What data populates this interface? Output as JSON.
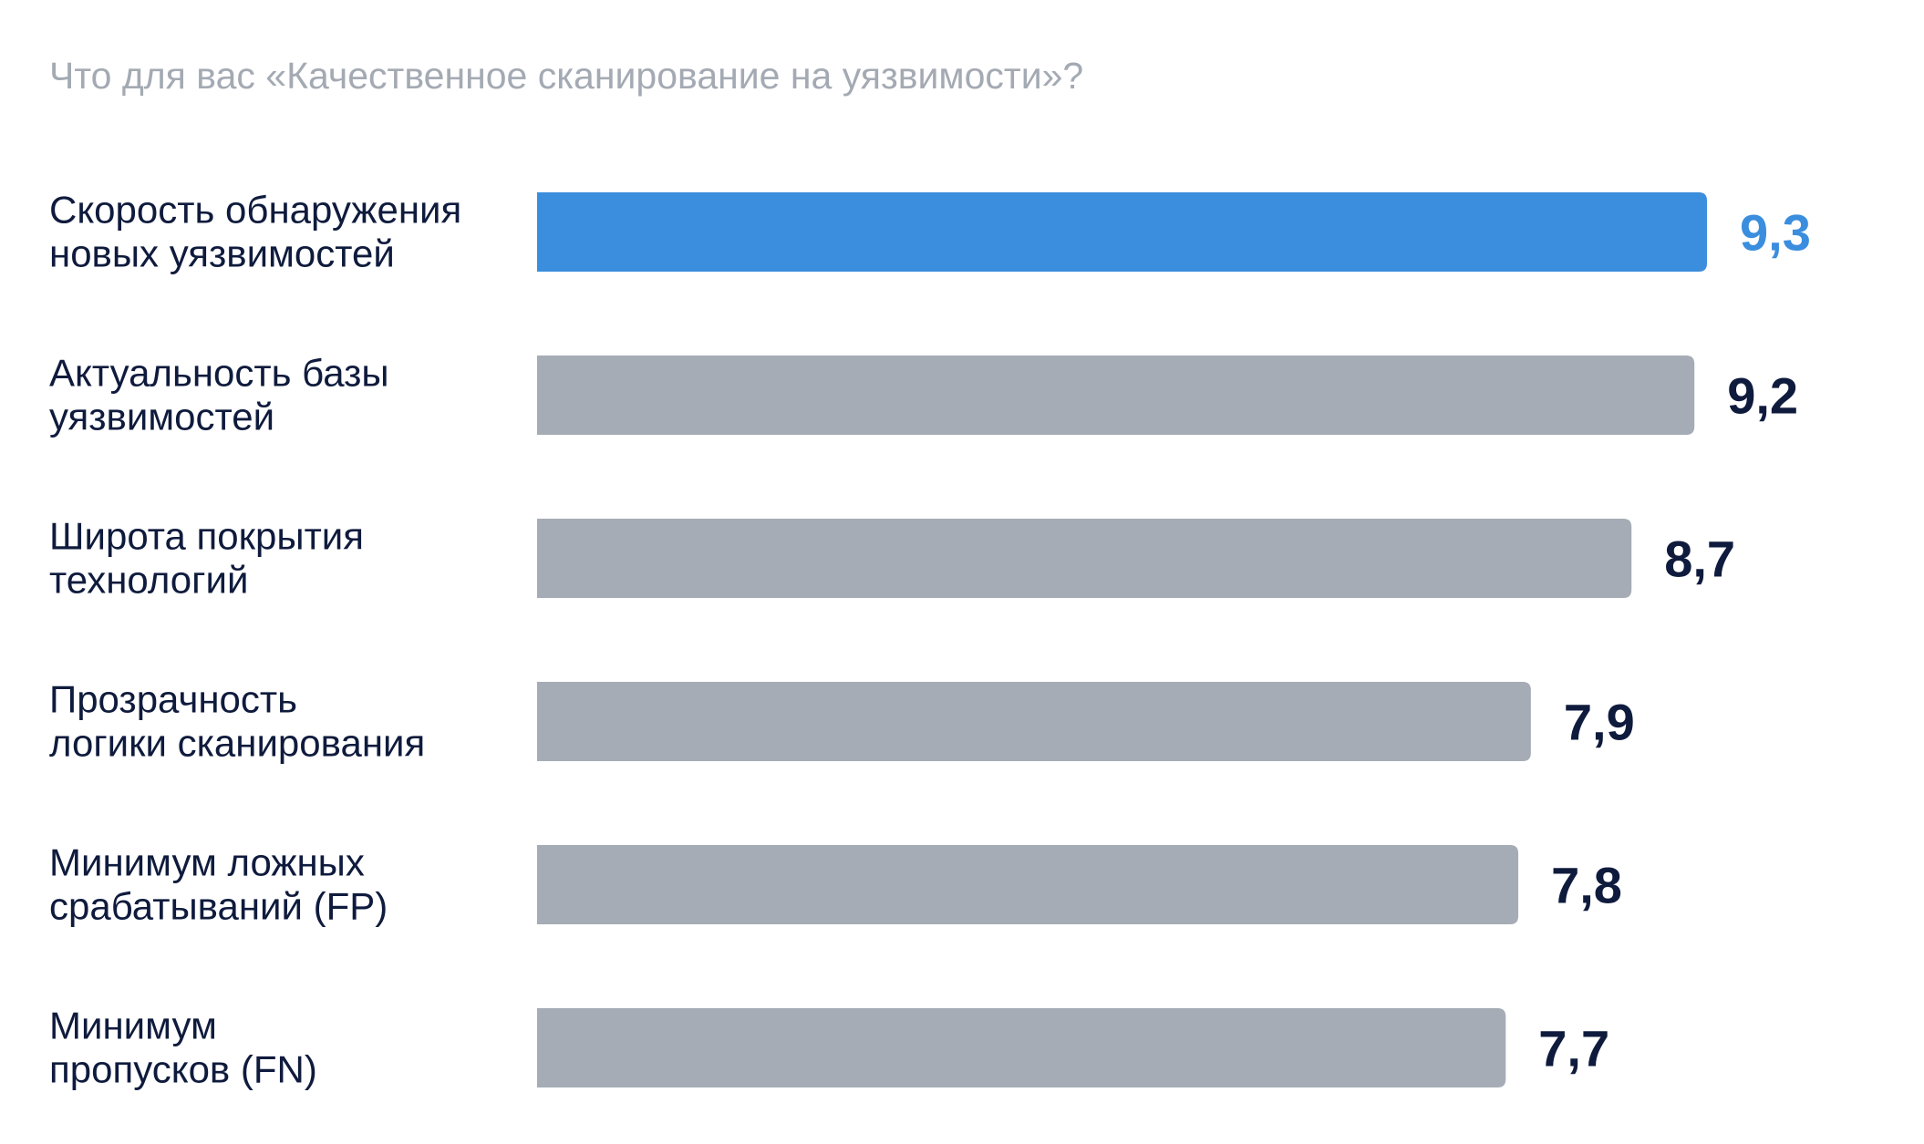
{
  "chart_data": {
    "type": "bar",
    "orientation": "horizontal",
    "title": "Что для вас «Качественное сканирование на уязвимости»?",
    "categories": [
      [
        "Скорость обнаружения",
        "новых уязвимостей"
      ],
      [
        "Актуальность базы",
        "уязвимостей"
      ],
      [
        "Широта покрытия",
        "технологий"
      ],
      [
        "Прозрачность",
        "логики сканирования"
      ],
      [
        "Минимум ложных",
        "срабатываний (FP)"
      ],
      [
        "Минимум",
        "пропусков (FN)"
      ]
    ],
    "values": [
      9.3,
      9.2,
      8.7,
      7.9,
      7.8,
      7.7
    ],
    "value_labels": [
      "9,3",
      "9,2",
      "8,7",
      "7,9",
      "7,8",
      "7,7"
    ],
    "highlight_index": 0,
    "colors": {
      "highlight": "#3b8ede",
      "bar": "#a5acb5",
      "value_text": "#0f1b3d",
      "title": "#a4aab3"
    },
    "xlim": [
      0,
      9.3
    ],
    "grid": false,
    "legend": "none"
  }
}
